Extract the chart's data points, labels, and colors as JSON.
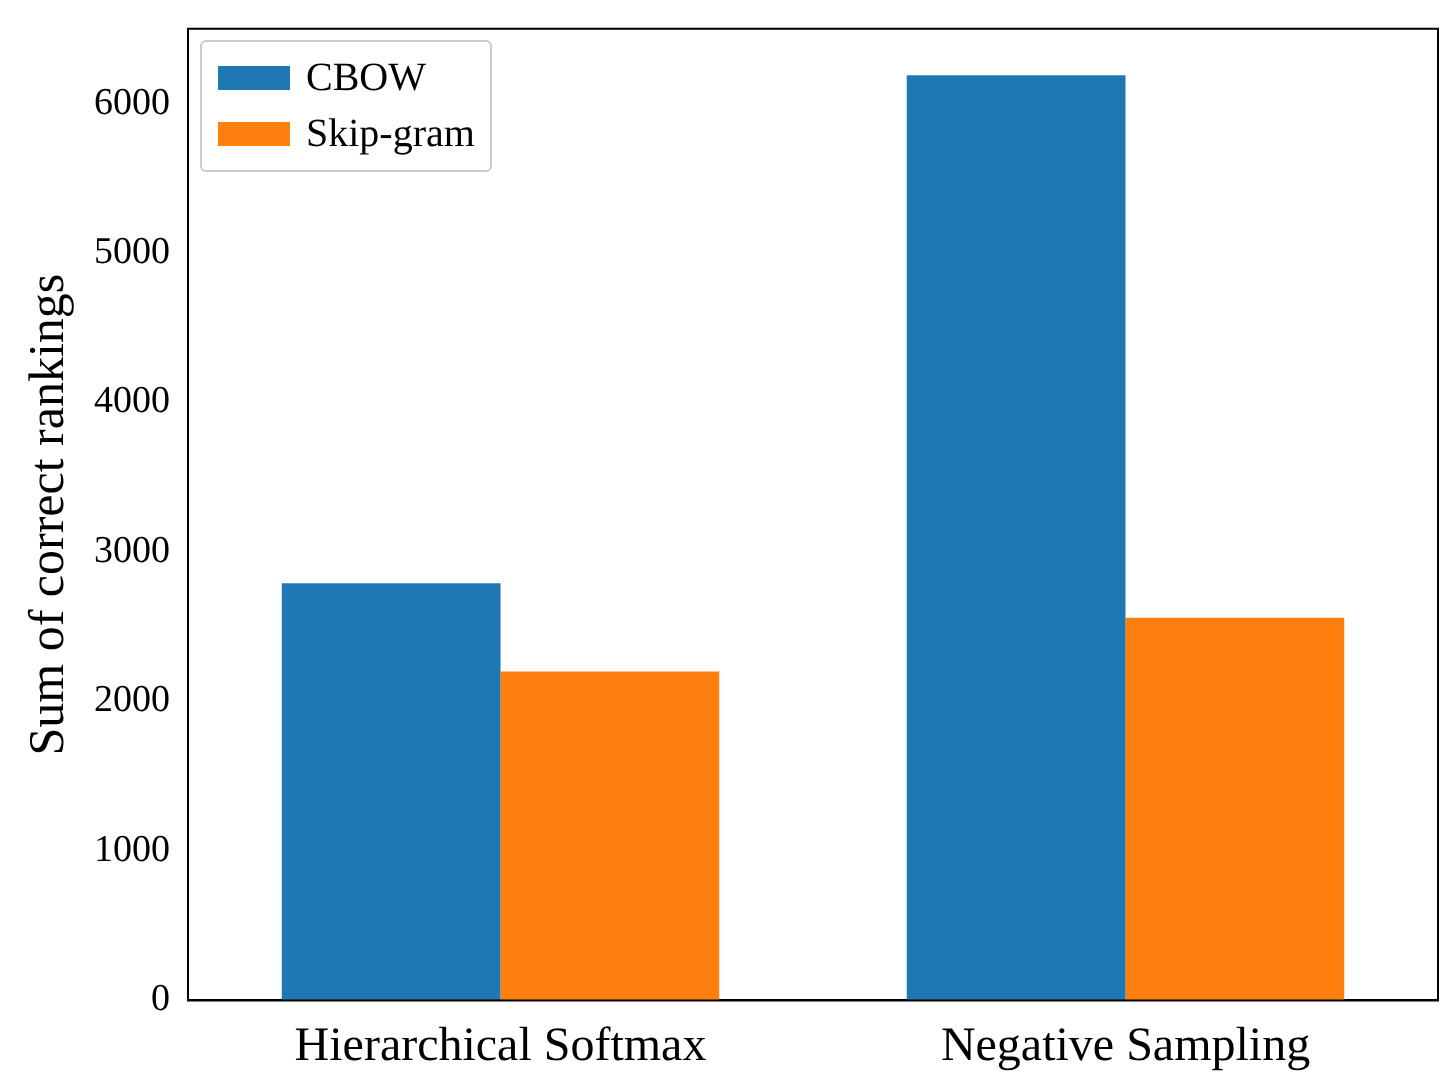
{
  "chart_data": {
    "type": "bar",
    "ylabel": "Sum of correct rankings",
    "categories": [
      "Hierarchical Softmax",
      "Negative Sampling"
    ],
    "series": [
      {
        "name": "CBOW",
        "color": "#1f77b4",
        "values": [
          2790,
          6190
        ]
      },
      {
        "name": "Skip-gram",
        "color": "#ff7f0e",
        "values": [
          2200,
          2560
        ]
      }
    ],
    "ylim": [
      0,
      6500
    ],
    "yticks": [
      0,
      1000,
      2000,
      3000,
      4000,
      5000,
      6000
    ],
    "grid": false,
    "legend": "top left"
  }
}
